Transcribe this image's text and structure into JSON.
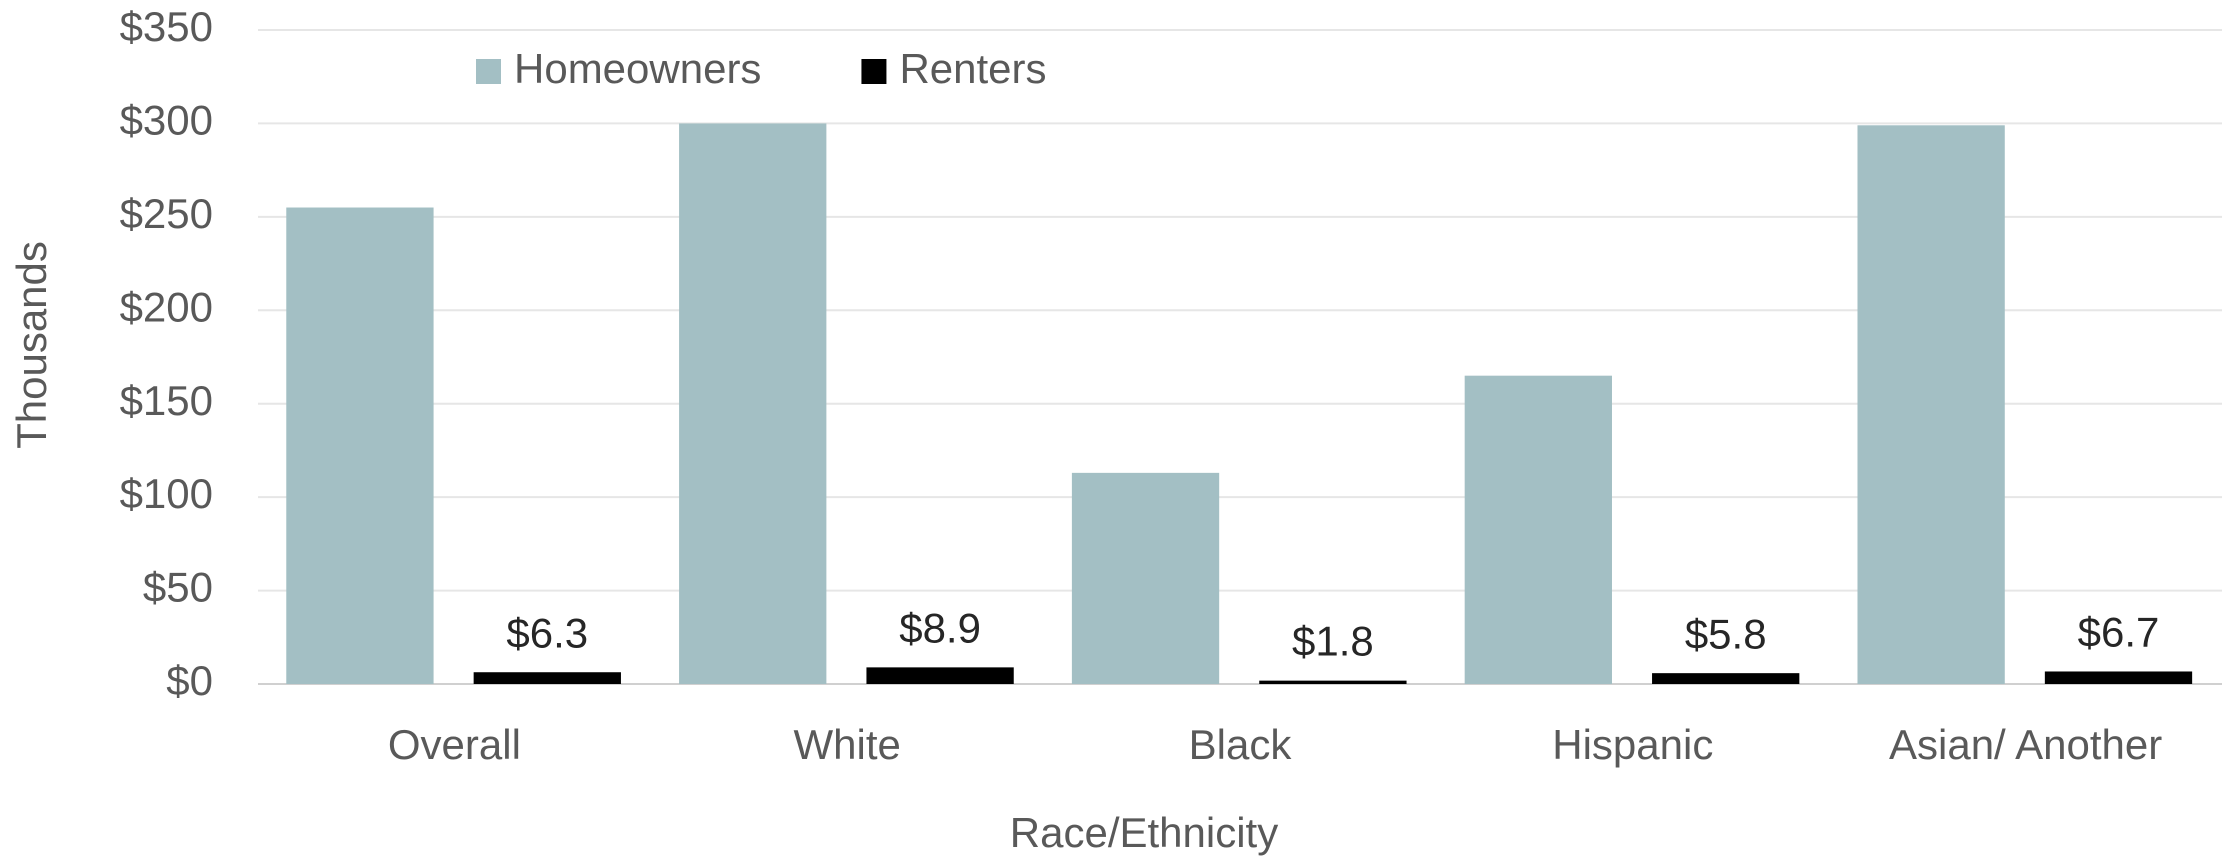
{
  "chart_data": {
    "type": "bar",
    "x_label": "Race/Ethnicity",
    "y_label": "Thousands",
    "categories": [
      "Overall",
      "White",
      "Black",
      "Hispanic",
      "Asian/ Another"
    ],
    "series": [
      {
        "name": "Homeowners",
        "color": "#a3bfc4",
        "values": [
          255,
          300,
          113,
          165,
          299
        ]
      },
      {
        "name": "Renters",
        "color": "#000000",
        "values": [
          6.3,
          8.9,
          1.8,
          5.8,
          6.7
        ],
        "value_labels": [
          "$6.3",
          "$8.9",
          "$1.8",
          "$5.8",
          "$6.7"
        ]
      }
    ],
    "ylim": [
      0,
      350
    ],
    "yticks": [
      {
        "value": 0,
        "label": "$0"
      },
      {
        "value": 50,
        "label": "$50"
      },
      {
        "value": 100,
        "label": "$100"
      },
      {
        "value": 150,
        "label": "$150"
      },
      {
        "value": 200,
        "label": "$200"
      },
      {
        "value": 250,
        "label": "$250"
      },
      {
        "value": 300,
        "label": "$300"
      },
      {
        "value": 350,
        "label": "$350"
      }
    ],
    "grid": true,
    "legend": "top"
  }
}
